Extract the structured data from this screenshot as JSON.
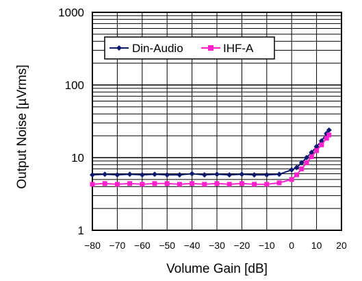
{
  "chart_data": {
    "type": "line",
    "title": "",
    "xlabel": "Volume Gain [dB]",
    "ylabel": "Output Noise [µVrms]",
    "xlim": [
      -80,
      20
    ],
    "ylim": [
      1,
      1000
    ],
    "y_scale": "log",
    "x_ticks": [
      -80,
      -70,
      -60,
      -50,
      -40,
      -30,
      -20,
      -10,
      0,
      10,
      20
    ],
    "x_tick_labels": [
      "−80",
      "−70",
      "−60",
      "−50",
      "−40",
      "−30",
      "−20",
      "−10",
      "0",
      "10",
      "20"
    ],
    "y_ticks": [
      1,
      10,
      100,
      1000
    ],
    "y_tick_labels": [
      "1",
      "10",
      "100",
      "1000"
    ],
    "grid": true,
    "legend_position": "top-left",
    "series": [
      {
        "name": "Din-Audio",
        "color": "#0a1a6e",
        "marker": "diamond",
        "x": [
          -80,
          -75,
          -70,
          -65,
          -60,
          -55,
          -50,
          -45,
          -40,
          -35,
          -30,
          -25,
          -20,
          -15,
          -10,
          -5,
          0,
          2,
          4,
          6,
          8,
          10,
          12,
          14,
          15
        ],
        "y": [
          5.8,
          5.9,
          5.8,
          5.9,
          5.8,
          5.9,
          5.8,
          5.8,
          6.0,
          5.8,
          5.9,
          5.8,
          5.9,
          5.8,
          5.8,
          5.9,
          6.8,
          7.3,
          8.5,
          10.0,
          11.8,
          14.2,
          17.0,
          21.5,
          24.0
        ]
      },
      {
        "name": "IHF-A",
        "color": "#ff22cc",
        "marker": "square",
        "x": [
          -80,
          -75,
          -70,
          -65,
          -60,
          -55,
          -50,
          -45,
          -40,
          -35,
          -30,
          -25,
          -20,
          -15,
          -10,
          -5,
          0,
          2,
          4,
          6,
          8,
          10,
          12,
          14,
          15
        ],
        "y": [
          4.3,
          4.4,
          4.3,
          4.4,
          4.3,
          4.4,
          4.4,
          4.3,
          4.4,
          4.3,
          4.4,
          4.3,
          4.4,
          4.3,
          4.3,
          4.5,
          5.0,
          5.8,
          7.0,
          8.5,
          10.3,
          12.5,
          15.0,
          18.5,
          20.5
        ]
      }
    ]
  }
}
